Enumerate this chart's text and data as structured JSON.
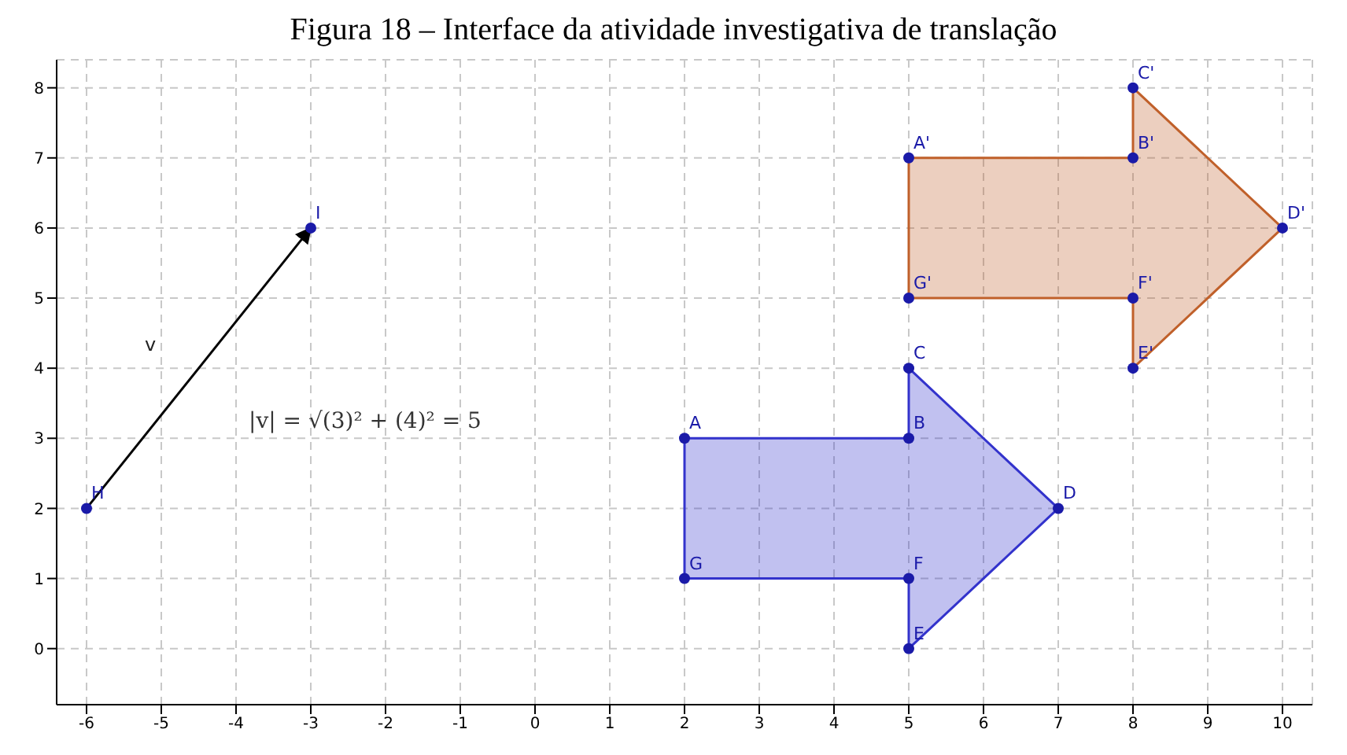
{
  "chart_data": {
    "type": "scatter",
    "title": "Figura 18 – Interface da atividade investigativa de translação",
    "xlim": [
      -6.4,
      10.4
    ],
    "ylim": [
      -0.8,
      8.4
    ],
    "xticks": [
      -6,
      -5,
      -4,
      -3,
      -2,
      -1,
      0,
      1,
      2,
      3,
      4,
      5,
      6,
      7,
      8,
      9,
      10
    ],
    "yticks": [
      0,
      1,
      2,
      3,
      4,
      5,
      6,
      7,
      8
    ],
    "grid": true,
    "series": [
      {
        "type": "area",
        "color": "#3333cc",
        "marker": "none",
        "x": [
          2,
          5,
          5,
          7,
          5,
          5,
          2,
          2
        ],
        "values": [
          3,
          3,
          4,
          2,
          0,
          1,
          1,
          3
        ]
      },
      {
        "type": "area",
        "color": "#c0602a",
        "marker": "none",
        "x": [
          5,
          8,
          8,
          10,
          8,
          8,
          5,
          5
        ],
        "values": [
          7,
          7,
          8,
          6,
          4,
          5,
          5,
          7
        ]
      },
      {
        "type": "line",
        "color": "#000000",
        "marker": "none",
        "x": [
          -6,
          -3
        ],
        "values": [
          2,
          6
        ]
      },
      {
        "type": "scatter",
        "color": "#1a1aa8",
        "marker": "circle",
        "x": [
          -6,
          -3,
          2,
          5,
          5,
          7,
          5,
          5,
          2,
          5,
          8,
          8,
          10,
          8,
          8,
          5
        ],
        "values": [
          2,
          6,
          3,
          3,
          4,
          2,
          0,
          1,
          1,
          7,
          7,
          8,
          6,
          4,
          5,
          5
        ]
      }
    ],
    "annotations": [
      {
        "text": "H",
        "x": -6,
        "y": 2
      },
      {
        "text": "I",
        "x": -3,
        "y": 6
      },
      {
        "text": "A",
        "x": 2,
        "y": 3
      },
      {
        "text": "B",
        "x": 5,
        "y": 3
      },
      {
        "text": "C",
        "x": 5,
        "y": 4
      },
      {
        "text": "D",
        "x": 7,
        "y": 2
      },
      {
        "text": "E",
        "x": 5,
        "y": 0
      },
      {
        "text": "F",
        "x": 5,
        "y": 1
      },
      {
        "text": "G",
        "x": 2,
        "y": 1
      },
      {
        "text": "A'",
        "x": 5,
        "y": 7
      },
      {
        "text": "B'",
        "x": 8,
        "y": 7
      },
      {
        "text": "C'",
        "x": 8,
        "y": 8
      },
      {
        "text": "D'",
        "x": 10,
        "y": 6
      },
      {
        "text": "E'",
        "x": 8,
        "y": 4
      },
      {
        "text": "F'",
        "x": 8,
        "y": 5
      },
      {
        "text": "G'",
        "x": 5,
        "y": 5
      },
      "v",
      "|v| = √(3)² + (4)² = 5"
    ]
  }
}
